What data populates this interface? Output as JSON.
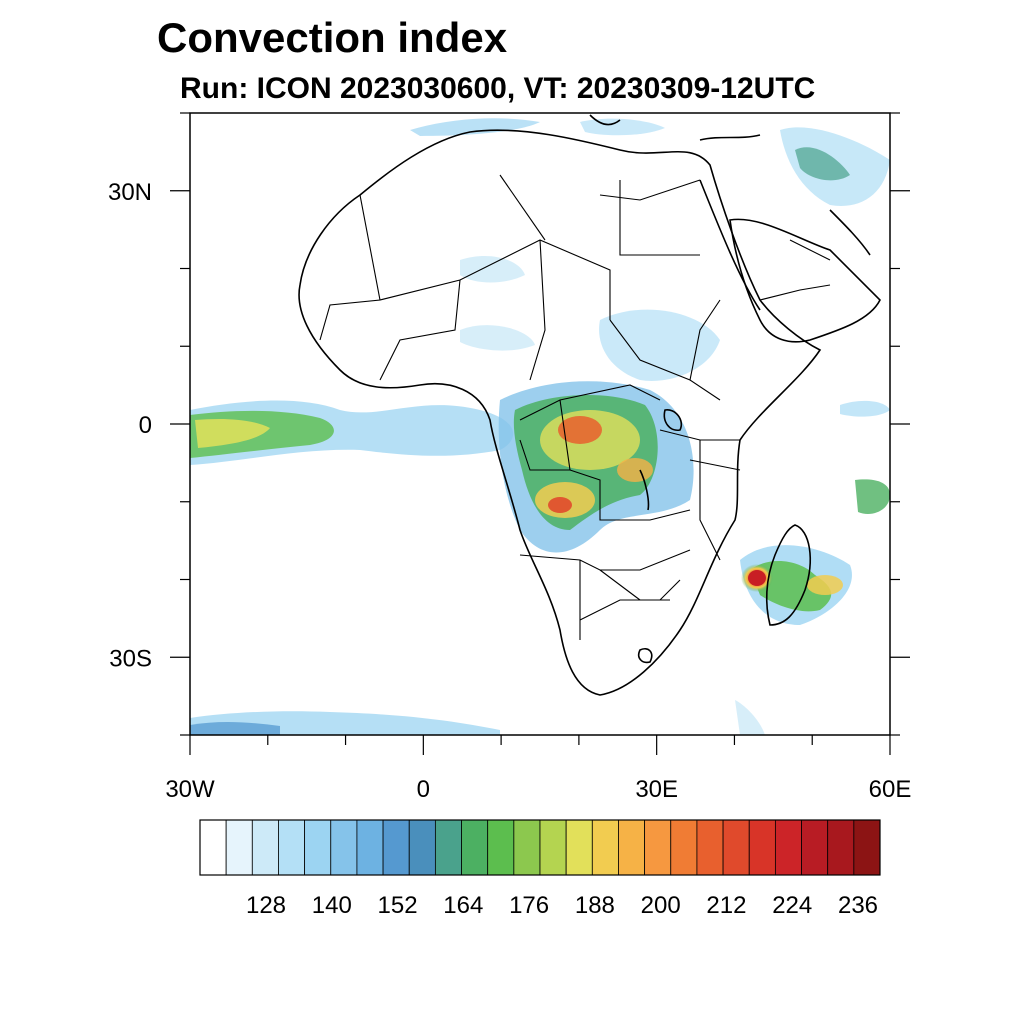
{
  "title": "Convection index",
  "subtitle": "Run: ICON 2023030600,  VT: 20230309-12UTC",
  "map": {
    "lon_ticks": [
      {
        "value": -30,
        "label": "30W"
      },
      {
        "value": 0,
        "label": "0"
      },
      {
        "value": 30,
        "label": "30E"
      },
      {
        "value": 60,
        "label": "60E"
      }
    ],
    "lat_ticks": [
      {
        "value": 30,
        "label": "30N"
      },
      {
        "value": 0,
        "label": "0"
      },
      {
        "value": -30,
        "label": "30S"
      }
    ],
    "lon_range": [
      -30,
      60
    ],
    "lat_range": [
      -40,
      40
    ]
  },
  "colorbar": {
    "labels": [
      "128",
      "140",
      "152",
      "164",
      "176",
      "188",
      "200",
      "212",
      "224",
      "236"
    ],
    "colors": [
      "#ffffff",
      "#e6f4fc",
      "#cdeaf8",
      "#b4e0f6",
      "#9cd4f2",
      "#85c3ea",
      "#6db2e2",
      "#5599d0",
      "#4a8fbc",
      "#4aa28c",
      "#4cb062",
      "#5cbe4e",
      "#8cc84e",
      "#b4d450",
      "#e2e05a",
      "#f2cc50",
      "#f6b246",
      "#f69840",
      "#f07c34",
      "#e8602e",
      "#e04a2c",
      "#d83428",
      "#cc2428",
      "#b81c24",
      "#a8181e",
      "#8c1414"
    ]
  }
}
